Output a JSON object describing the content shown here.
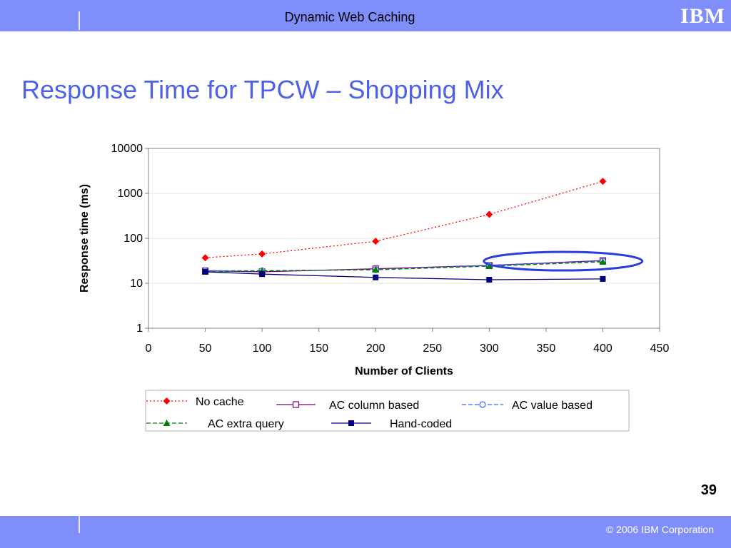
{
  "header": {
    "title": "Dynamic Web Caching",
    "logo_text": "IBM"
  },
  "slide": {
    "title": "Response Time for TPCW – Shopping Mix",
    "page_number": "39"
  },
  "footer": {
    "copyright": "© 2006 IBM Corporation"
  },
  "colors": {
    "bar": "#7f8ef8",
    "title": "#4d62e8",
    "highlight": "#2a3ce0"
  },
  "chart_data": {
    "type": "line",
    "xlabel": "Number of Clients",
    "ylabel": "Response time (ms)",
    "xlim": [
      0,
      450
    ],
    "ylim": [
      1,
      10000
    ],
    "y_scale": "log",
    "grid": true,
    "x_ticks": [
      "0",
      "50",
      "100",
      "150",
      "200",
      "250",
      "300",
      "350",
      "400",
      "450"
    ],
    "y_ticks": [
      "1",
      "10",
      "100",
      "1000",
      "10000"
    ],
    "x": [
      50,
      100,
      200,
      300,
      400
    ],
    "series": [
      {
        "name": "No cache",
        "values": [
          37,
          45,
          86,
          340,
          1850
        ],
        "color": "#ff0000",
        "marker": "diamond",
        "line": "dotted"
      },
      {
        "name": "AC column based",
        "values": [
          19,
          18,
          21,
          25,
          32
        ],
        "color": "#800080",
        "marker": "square-open",
        "line": "solid"
      },
      {
        "name": "AC value based",
        "values": [
          19,
          19,
          20,
          25,
          31
        ],
        "color": "#3366ff",
        "marker": "circle-open",
        "line": "dashed"
      },
      {
        "name": "AC extra query",
        "values": [
          18,
          19,
          20,
          24,
          30
        ],
        "color": "#008000",
        "marker": "triangle",
        "line": "dashed"
      },
      {
        "name": "Hand-coded",
        "values": [
          18,
          16,
          13.5,
          12,
          12.5
        ],
        "color": "#000080",
        "marker": "square",
        "line": "solid"
      }
    ],
    "legend_position": "bottom",
    "annotation": "ellipse highlighting 300–400 clients"
  }
}
